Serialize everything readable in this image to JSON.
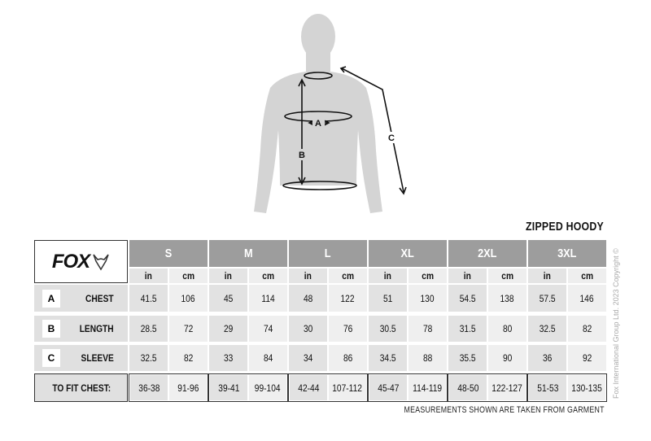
{
  "title": "ZIPPED HOODY",
  "brand": {
    "logo_text": "FOX"
  },
  "diagram_labels": {
    "a": "A",
    "b": "B",
    "c": "C"
  },
  "table": {
    "sizes": [
      "S",
      "M",
      "L",
      "XL",
      "2XL",
      "3XL"
    ],
    "units": [
      "in",
      "cm"
    ],
    "rows": [
      {
        "letter": "A",
        "label": "CHEST",
        "values": [
          "41.5",
          "106",
          "45",
          "114",
          "48",
          "122",
          "51",
          "130",
          "54.5",
          "138",
          "57.5",
          "146"
        ]
      },
      {
        "letter": "B",
        "label": "LENGTH",
        "values": [
          "28.5",
          "72",
          "29",
          "74",
          "30",
          "76",
          "30.5",
          "78",
          "31.5",
          "80",
          "32.5",
          "82"
        ]
      },
      {
        "letter": "C",
        "label": "SLEEVE",
        "values": [
          "32.5",
          "82",
          "33",
          "84",
          "34",
          "86",
          "34.5",
          "88",
          "35.5",
          "90",
          "36",
          "92"
        ]
      }
    ],
    "fit": {
      "label": "TO FIT CHEST:",
      "values": [
        "36-38",
        "91-96",
        "39-41",
        "99-104",
        "42-44",
        "107-112",
        "45-47",
        "114-119",
        "48-50",
        "122-127",
        "51-53",
        "130-135"
      ]
    }
  },
  "note": "MEASUREMENTS SHOWN ARE TAKEN FROM GARMENT",
  "copyright": "Fox International Group Ltd. 2023 Copyright ©",
  "colors": {
    "header": "#9d9d9d",
    "cell_in": "#e2e2e2",
    "cell_cm": "#efefef",
    "silhouette": "#d4d4d4"
  }
}
